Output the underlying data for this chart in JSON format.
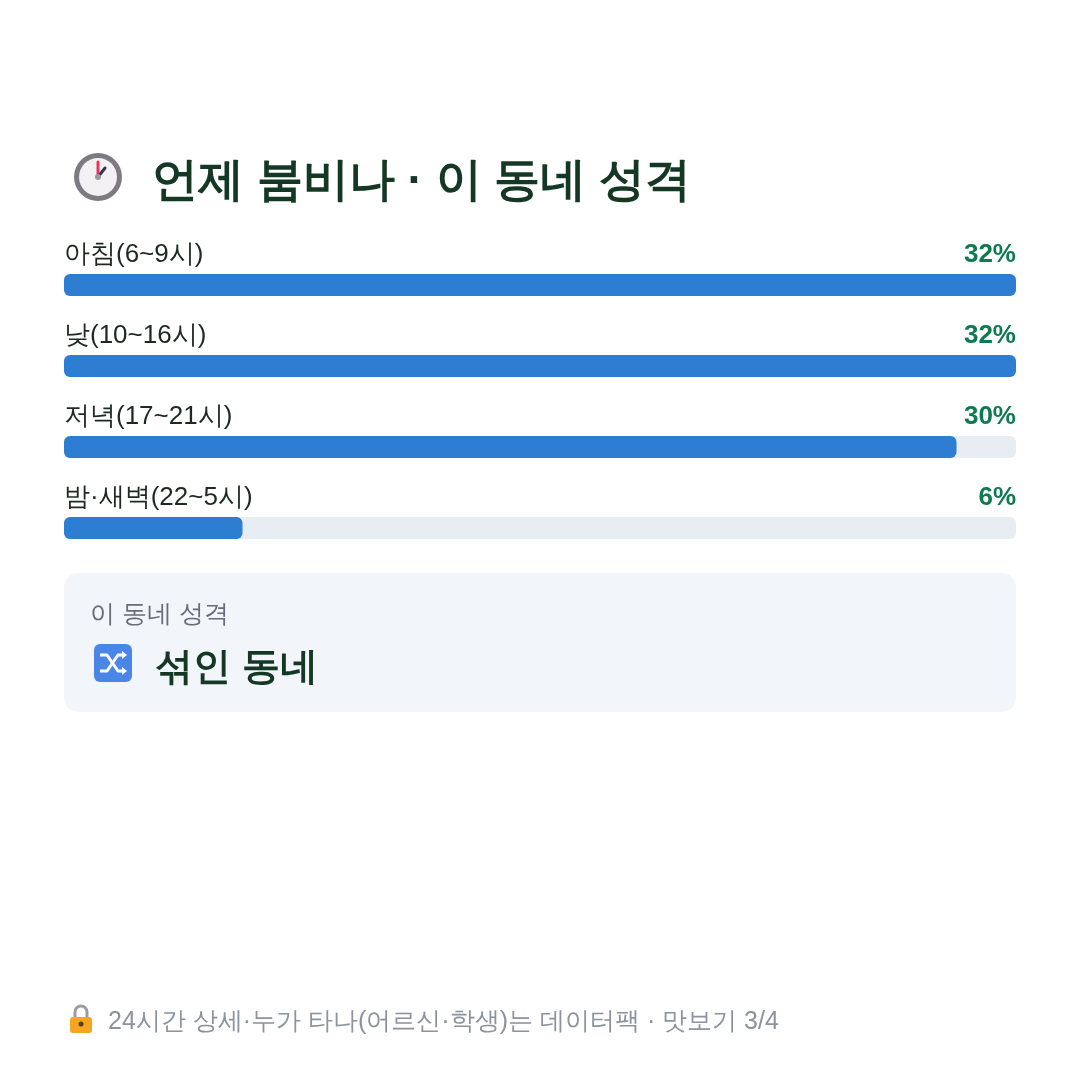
{
  "chart_data": {
    "type": "bar",
    "orientation": "horizontal",
    "title": "언제 붐비나 · 이 동네 성격",
    "categories": [
      "아침(6~9시)",
      "낮(10~16시)",
      "저녁(17~21시)",
      "밤·새벽(22~5시)"
    ],
    "values": [
      32,
      32,
      30,
      6
    ],
    "color": "#2d7dd2",
    "value_labels": [
      "32%",
      "32%",
      "30%",
      "6%"
    ],
    "annotations": [
      "이 동네 성격",
      "섞인 동네",
      "24시간 상세·누가 타나(어르신·학생)는 데이터팩 · 맛보기 3/4"
    ]
  }
}
